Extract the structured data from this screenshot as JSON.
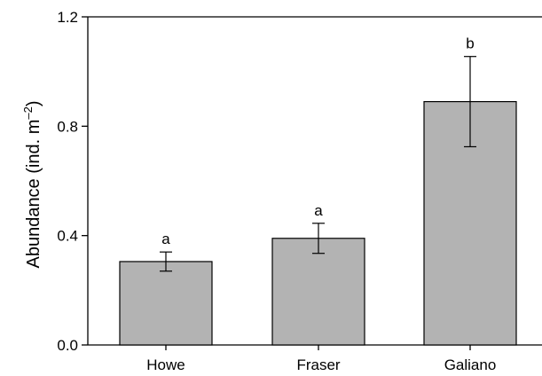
{
  "chart_data": {
    "type": "bar",
    "categories": [
      "Howe",
      "Fraser",
      "Galiano"
    ],
    "values": [
      0.305,
      0.39,
      0.89
    ],
    "error_low": [
      0.27,
      0.335,
      0.725
    ],
    "error_high": [
      0.34,
      0.445,
      1.055
    ],
    "significance_labels": [
      "a",
      "a",
      "b"
    ],
    "ylabel": "Abundance (ind. m",
    "ylabel_superscript": "–2",
    "ylabel_suffix": ")",
    "ylim": [
      0,
      1.2
    ],
    "yticks": [
      0.0,
      0.4,
      0.8,
      1.2
    ],
    "ytick_labels": [
      "0.0",
      "0.4",
      "0.8",
      "1.2"
    ],
    "grid": false,
    "colors": {
      "bar_fill": "#b3b3b3",
      "bar_stroke": "#000000",
      "axis": "#000000"
    }
  }
}
